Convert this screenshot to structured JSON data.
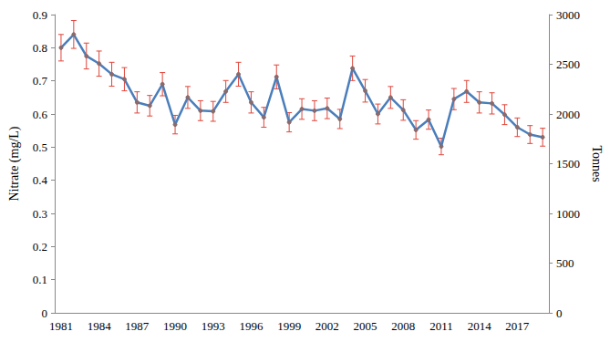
{
  "chart_data": {
    "type": "line",
    "y_label": "Nitrate (mg/L)",
    "y2_label": "Tonnes",
    "categories": [
      "1981",
      null,
      null,
      "1984",
      null,
      null,
      "1987",
      null,
      null,
      "1990",
      null,
      null,
      "1993",
      null,
      null,
      "1996",
      null,
      null,
      "1999",
      null,
      null,
      "2002",
      null,
      null,
      "2005",
      null,
      null,
      "2008",
      null,
      null,
      "2011",
      null,
      null,
      "2014",
      null,
      null,
      "2017",
      null,
      null
    ],
    "values": [
      0.8,
      0.84,
      0.775,
      0.752,
      0.72,
      0.705,
      0.635,
      0.625,
      0.69,
      0.568,
      0.65,
      0.61,
      0.608,
      0.668,
      0.72,
      0.635,
      0.59,
      0.712,
      0.575,
      0.615,
      0.61,
      0.617,
      0.585,
      0.738,
      0.67,
      0.6,
      0.65,
      0.612,
      0.552,
      0.583,
      0.502,
      0.645,
      0.668,
      0.635,
      0.632,
      0.598,
      0.56,
      0.538,
      0.53
    ],
    "errors": [
      0.04,
      0.042,
      0.039,
      0.038,
      0.036,
      0.035,
      0.032,
      0.031,
      0.035,
      0.028,
      0.033,
      0.03,
      0.03,
      0.033,
      0.036,
      0.032,
      0.03,
      0.036,
      0.029,
      0.031,
      0.03,
      0.031,
      0.029,
      0.037,
      0.034,
      0.03,
      0.033,
      0.031,
      0.028,
      0.029,
      0.025,
      0.032,
      0.033,
      0.032,
      0.032,
      0.03,
      0.028,
      0.027,
      0.027
    ],
    "color": "#4a7ebb",
    "marker": "circle",
    "ylim": [
      0,
      0.9
    ],
    "yticks": [
      0,
      0.1,
      0.2,
      0.3,
      0.4,
      0.5,
      0.6,
      0.7,
      0.8,
      0.9
    ],
    "y2lim": [
      0,
      3000
    ],
    "y2ticks": [
      0,
      500,
      1000,
      1500,
      2000,
      2500,
      3000
    ],
    "grid": false
  }
}
